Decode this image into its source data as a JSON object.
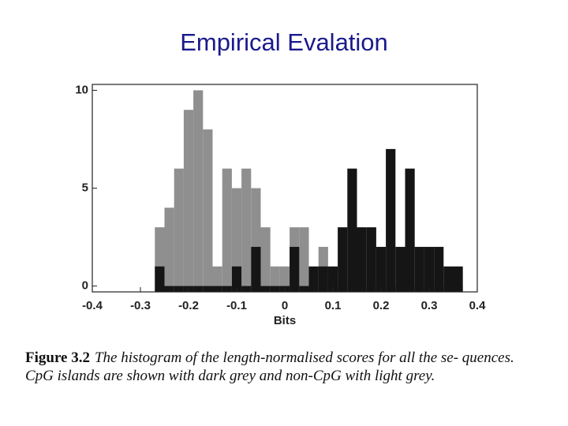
{
  "title": "Empirical Evalation",
  "chart_data": {
    "type": "histogram",
    "xlabel": "Bits",
    "bins": [
      -0.27,
      -0.25,
      -0.23,
      -0.21,
      -0.19,
      -0.17,
      -0.15,
      -0.13,
      -0.11,
      -0.09,
      -0.07,
      -0.05,
      -0.03,
      -0.01,
      0.01,
      0.03,
      0.05,
      0.07,
      0.09,
      0.11,
      0.13,
      0.15,
      0.17,
      0.19,
      0.21,
      0.23,
      0.25,
      0.27,
      0.29,
      0.31,
      0.33,
      0.35,
      0.37
    ],
    "series": [
      {
        "color": "#8f8f8f",
        "values": [
          3,
          4,
          6,
          9,
          10,
          8,
          1,
          6,
          5,
          6,
          5,
          3,
          1,
          1,
          3,
          3,
          0,
          2,
          0,
          0,
          0,
          0,
          0,
          0,
          0,
          0,
          0,
          0,
          0,
          0,
          0,
          0
        ]
      },
      {
        "color": "#151515",
        "values": [
          1,
          0,
          0,
          0,
          0,
          0,
          0,
          0,
          1,
          0,
          2,
          0,
          0,
          0,
          2,
          0,
          1,
          1,
          1,
          3,
          6,
          3,
          3,
          2,
          7,
          2,
          6,
          2,
          2,
          2,
          1,
          1
        ]
      }
    ],
    "xlim": [
      -0.4,
      0.4
    ],
    "xticks": [
      -0.4,
      -0.3,
      -0.2,
      -0.1,
      0,
      0.1,
      0.2,
      0.3,
      0.4
    ],
    "ylim": [
      -0.3,
      10.3
    ],
    "yticks": [
      0,
      5,
      10
    ]
  },
  "caption": {
    "label": "Figure 3.2",
    "text": "The histogram of the length-normalised scores for all the se- quences. CpG islands are shown with dark grey and non-CpG with light grey."
  }
}
